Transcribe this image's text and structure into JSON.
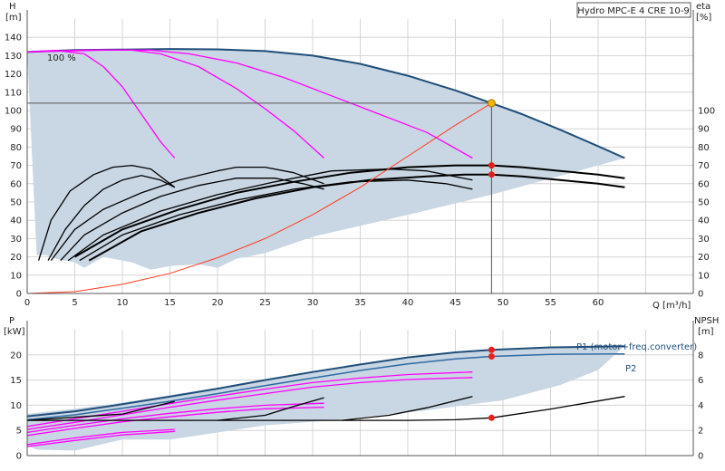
{
  "chart_data": [
    {
      "type": "line",
      "title": "Hydro MPC-E 4 CRE 10-9",
      "xlabel": "Q [m³/h]",
      "ylabel_left": "H",
      "ylabel_left_unit": "[m]",
      "ylabel_right": "eta",
      "ylabel_right_unit": "[%]",
      "xlim": [
        0,
        70
      ],
      "ylim_left": [
        0,
        150
      ],
      "ylim_right": [
        0,
        150
      ],
      "x_ticks": [
        0,
        5,
        10,
        15,
        20,
        25,
        30,
        35,
        40,
        45,
        50,
        55,
        60
      ],
      "y_ticks_left": [
        0,
        10,
        20,
        30,
        40,
        50,
        60,
        70,
        80,
        90,
        100,
        110,
        120,
        130,
        140
      ],
      "y_ticks_right": [
        0,
        10,
        20,
        30,
        40,
        50,
        60,
        70,
        80,
        90,
        100
      ],
      "annotation_100pct": "100 %",
      "grid": true,
      "colors": {
        "area": "#c9d6e3",
        "max_curve": "#1f4e79",
        "speed_curves": "#ff00ff",
        "eff_curves": "#000000",
        "system_curve": "#ff3b1f",
        "duty_point": "#f2b705",
        "marker": "#e8211d",
        "cursor": "#555555"
      },
      "operating_area_envelope": {
        "upper": [
          [
            0,
            132
          ],
          [
            5,
            133
          ],
          [
            10,
            133.3
          ],
          [
            15,
            133.6
          ],
          [
            20,
            133.4
          ],
          [
            25,
            132.5
          ],
          [
            30,
            130
          ],
          [
            35,
            125.5
          ],
          [
            40,
            119
          ],
          [
            45,
            111
          ],
          [
            48.8,
            104
          ],
          [
            52,
            98
          ],
          [
            56,
            89.5
          ],
          [
            60,
            80.5
          ],
          [
            62.8,
            74
          ]
        ],
        "lower_start": [
          1,
          21
        ],
        "lower_return": [
          [
            62.8,
            74
          ],
          [
            48.8,
            54
          ],
          [
            40,
            43
          ],
          [
            30,
            31
          ],
          [
            25,
            22
          ],
          [
            22,
            19
          ],
          [
            20,
            14
          ],
          [
            18,
            16
          ],
          [
            15,
            15
          ],
          [
            13,
            13
          ],
          [
            11,
            17
          ],
          [
            8,
            20
          ],
          [
            6,
            14
          ],
          [
            5,
            17
          ],
          [
            3,
            19
          ],
          [
            2,
            21
          ],
          [
            1,
            21
          ]
        ]
      },
      "series": [
        {
          "role": "max-head",
          "x": [
            0,
            5,
            10,
            15,
            20,
            25,
            30,
            35,
            40,
            45,
            48.8,
            52,
            56,
            60,
            62.8
          ],
          "y": [
            132,
            133,
            133.3,
            133.6,
            133.4,
            132.5,
            130,
            125.5,
            119,
            111,
            104,
            98,
            89.5,
            80.5,
            74
          ]
        },
        {
          "role": "speed-head",
          "x": [
            0,
            3,
            6,
            8,
            10,
            12,
            14,
            15.5
          ],
          "y": [
            132,
            132.8,
            131,
            124,
            113,
            98,
            83,
            74
          ]
        },
        {
          "role": "speed-head",
          "x": [
            0,
            6,
            11,
            14,
            18,
            22,
            25,
            28,
            31.2
          ],
          "y": [
            132,
            133,
            133,
            131,
            124,
            112,
            101,
            89,
            74
          ]
        },
        {
          "role": "speed-head",
          "x": [
            0,
            8,
            13,
            17,
            22,
            27,
            32,
            37,
            42,
            46.8
          ],
          "y": [
            132,
            133,
            133,
            131,
            126,
            118,
            108,
            98,
            88,
            74
          ]
        },
        {
          "role": "efficiency",
          "x": [
            1.2,
            2.5,
            4.5,
            7,
            9,
            11,
            13,
            15.5
          ],
          "y": [
            18,
            40,
            56,
            65,
            69,
            70,
            68,
            58
          ]
        },
        {
          "role": "efficiency",
          "x": [
            2.2,
            4,
            6,
            8,
            10,
            12,
            14,
            15.5
          ],
          "y": [
            18,
            35,
            48,
            57,
            62,
            64.5,
            62,
            58
          ]
        },
        {
          "role": "efficiency",
          "x": [
            2.5,
            5,
            8,
            12,
            16,
            20,
            22,
            25,
            28,
            31.2
          ],
          "y": [
            18,
            35,
            46,
            55,
            62,
            67,
            69,
            69,
            66,
            60
          ]
        },
        {
          "role": "efficiency",
          "x": [
            3.5,
            6,
            10,
            14,
            18,
            22,
            26,
            29,
            31.2
          ],
          "y": [
            18,
            32,
            44,
            53,
            59,
            63,
            63,
            60,
            57
          ]
        },
        {
          "role": "efficiency",
          "x": [
            4.3,
            8,
            14,
            20,
            26,
            32,
            38,
            42,
            46.8
          ],
          "y": [
            18,
            32,
            45,
            54,
            61,
            67,
            68,
            67,
            62
          ]
        },
        {
          "role": "efficiency",
          "x": [
            5.5,
            10,
            16,
            22,
            28,
            34,
            40,
            44,
            46.8
          ],
          "y": [
            18,
            32,
            43,
            51,
            57,
            61,
            62,
            60,
            57
          ]
        },
        {
          "role": "efficiency-max-top",
          "x": [
            5,
            10,
            16,
            22,
            28,
            34,
            40,
            45,
            48.8,
            52,
            56,
            60,
            62.8
          ],
          "y": [
            20,
            35,
            46,
            55,
            61,
            66,
            69,
            70,
            70,
            69,
            67,
            65,
            63
          ]
        },
        {
          "role": "efficiency-max-bottom",
          "x": [
            6.5,
            12,
            18,
            24,
            30,
            36,
            42,
            46,
            48.8,
            52,
            56,
            60,
            62.8
          ],
          "y": [
            18,
            34,
            44,
            52,
            58,
            62,
            64,
            65,
            65,
            64,
            62,
            60,
            58
          ]
        },
        {
          "role": "system-curve",
          "x": [
            0,
            5,
            10,
            15,
            20,
            25,
            30,
            35,
            40,
            45,
            48.8
          ],
          "y": [
            0,
            1,
            5,
            11,
            19.5,
            30,
            43,
            58,
            75,
            92,
            104
          ]
        }
      ],
      "duty_point": {
        "x": 48.8,
        "y": 104
      },
      "markers": [
        {
          "x": 48.8,
          "y": 70
        },
        {
          "x": 48.8,
          "y": 65
        }
      ]
    },
    {
      "type": "line",
      "ylabel_left": "P",
      "ylabel_left_unit": "[kW]",
      "ylabel_right": "NPSH",
      "ylabel_right_unit": "[m]",
      "xlim": [
        0,
        70
      ],
      "ylim_left": [
        0,
        25
      ],
      "ylim_right": [
        0,
        10
      ],
      "y_ticks_left": [
        0,
        5,
        10,
        15,
        20
      ],
      "y_ticks_right": [
        0,
        2,
        4,
        6,
        8
      ],
      "grid": true,
      "area_envelope": {
        "upper": [
          [
            0,
            8.3
          ],
          [
            5,
            9.3
          ],
          [
            10,
            10.5
          ],
          [
            15,
            12
          ],
          [
            20,
            13.5
          ],
          [
            25,
            15
          ],
          [
            30,
            16.5
          ],
          [
            35,
            18
          ],
          [
            40,
            19.3
          ],
          [
            45,
            20.4
          ],
          [
            48.8,
            21
          ],
          [
            55,
            21.6
          ],
          [
            62.8,
            21.8
          ]
        ],
        "lower": [
          [
            62.8,
            21.8
          ],
          [
            60,
            17
          ],
          [
            56,
            14
          ],
          [
            50,
            11
          ],
          [
            42,
            9
          ],
          [
            32,
            7
          ],
          [
            25,
            6
          ],
          [
            15,
            3.2
          ],
          [
            10,
            3.2
          ],
          [
            5,
            1
          ],
          [
            1,
            1.2
          ],
          [
            0,
            2
          ]
        ]
      },
      "series": [
        {
          "name": "P1 (motor+freq.converter)",
          "x": [
            0,
            5,
            10,
            15,
            20,
            25,
            30,
            35,
            40,
            45,
            48.8,
            55,
            62.8
          ],
          "y": [
            7.8,
            8.8,
            10.2,
            11.7,
            13.3,
            15,
            16.6,
            18.1,
            19.5,
            20.5,
            21,
            21.5,
            21.7
          ]
        },
        {
          "name": "P2",
          "x": [
            0,
            5,
            10,
            15,
            20,
            25,
            30,
            35,
            40,
            45,
            48.8,
            55,
            62.8
          ],
          "y": [
            7.1,
            8.1,
            9.4,
            10.8,
            12.3,
            13.9,
            15.4,
            16.9,
            18.2,
            19.2,
            19.7,
            20.1,
            20.2
          ]
        },
        {
          "role": "power-reduced",
          "x": [
            0,
            5,
            10,
            15.5
          ],
          "y": [
            2.2,
            3.5,
            4.6,
            5.2
          ]
        },
        {
          "role": "power-reduced",
          "x": [
            0,
            5,
            10,
            15.5
          ],
          "y": [
            1.8,
            3,
            4.1,
            4.8
          ]
        },
        {
          "role": "power-reduced",
          "x": [
            0,
            5,
            10,
            15,
            20,
            25,
            31.2
          ],
          "y": [
            4.6,
            6,
            7.3,
            8.4,
            9.3,
            10,
            10.4
          ]
        },
        {
          "role": "power-reduced",
          "x": [
            0,
            5,
            10,
            15,
            20,
            25,
            31.2
          ],
          "y": [
            4,
            5.4,
            6.7,
            7.7,
            8.6,
            9.3,
            9.6
          ]
        },
        {
          "role": "power-reduced",
          "x": [
            0,
            5,
            10,
            15,
            20,
            25,
            30,
            35,
            40,
            46.8
          ],
          "y": [
            5.8,
            7.3,
            8.8,
            10.3,
            11.8,
            13.2,
            14.5,
            15.4,
            16.1,
            16.6
          ]
        },
        {
          "role": "power-reduced",
          "x": [
            0,
            5,
            10,
            15,
            20,
            25,
            30,
            35,
            40,
            46.8
          ],
          "y": [
            5.2,
            6.6,
            8.1,
            9.6,
            11,
            12.3,
            13.6,
            14.5,
            15.1,
            15.5
          ]
        },
        {
          "role": "npsh",
          "x": [
            0,
            5,
            10,
            15,
            20,
            25,
            30,
            35,
            40,
            45,
            48.8,
            55,
            62.8
          ],
          "y": [
            2.8,
            2.8,
            2.8,
            2.8,
            2.8,
            2.8,
            2.8,
            2.8,
            2.8,
            2.85,
            3,
            3.7,
            4.7
          ]
        },
        {
          "role": "npsh-reduced",
          "x": [
            0,
            10,
            15.5
          ],
          "y": [
            2.8,
            3.3,
            4.3
          ]
        },
        {
          "role": "npsh-reduced",
          "x": [
            20,
            25,
            28,
            31.2
          ],
          "y": [
            2.8,
            3.2,
            3.9,
            4.6
          ]
        },
        {
          "role": "npsh-reduced",
          "x": [
            33,
            38,
            42,
            46.8
          ],
          "y": [
            2.8,
            3.2,
            3.8,
            4.7
          ]
        }
      ],
      "markers": [
        {
          "x": 48.8,
          "y": 21
        },
        {
          "x": 48.8,
          "y": 19.7
        },
        {
          "x": 48.8,
          "y": 3.0,
          "axis": "right"
        }
      ]
    }
  ]
}
